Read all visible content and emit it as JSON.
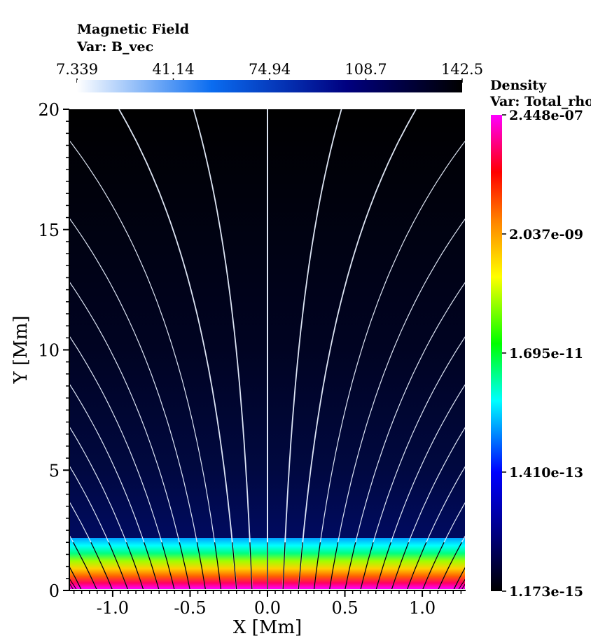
{
  "chart_data": {
    "type": "heatmap",
    "xlabel": "X [Mm]",
    "ylabel": "Y [Mm]",
    "xlim": [
      -1.28,
      1.28
    ],
    "ylim": [
      0,
      20
    ],
    "x_ticks": [
      -1.0,
      -0.5,
      0.0,
      0.5,
      1.0
    ],
    "x_tick_labels": [
      "-1.0",
      "-0.5",
      "0.0",
      "0.5",
      "1.0"
    ],
    "y_ticks": [
      0,
      5,
      10,
      15,
      20
    ],
    "y_tick_labels": [
      "0",
      "5",
      "10",
      "15",
      "20"
    ],
    "magnetic_field_legend": {
      "title": "Magnetic Field",
      "variable": "Var: B_vec",
      "tick_labels": [
        "7.339",
        "41.14",
        "74.94",
        "108.7",
        "142.5"
      ],
      "range": [
        7.339,
        142.5
      ],
      "colors": [
        "#ffffff",
        "#0a6cf0",
        "#000080",
        "#000000"
      ]
    },
    "density_legend": {
      "title": "Density",
      "variable": "Var: Total_rho",
      "tick_labels": [
        "2.448e-07",
        "2.037e-09",
        "1.695e-11",
        "1.410e-13",
        "1.173e-15"
      ],
      "range": [
        1.173e-15,
        2.448e-07
      ],
      "scale": "log",
      "colors": [
        "#000000",
        "#000080",
        "#0000ff",
        "#00ffff",
        "#00ff00",
        "#ffff00",
        "#ff8000",
        "#ff0000",
        "#ff00ff"
      ]
    },
    "field_lines_x0": [
      -1.2,
      -1.1,
      -1.0,
      -0.9,
      -0.8,
      -0.7,
      -0.6,
      -0.5,
      -0.4,
      -0.3,
      -0.2,
      -0.1,
      0.0,
      0.1,
      0.2,
      0.3,
      0.4,
      0.5,
      0.6,
      0.7,
      0.8,
      0.9,
      1.0,
      1.1,
      1.2
    ],
    "transition_region_height": 2.1
  }
}
